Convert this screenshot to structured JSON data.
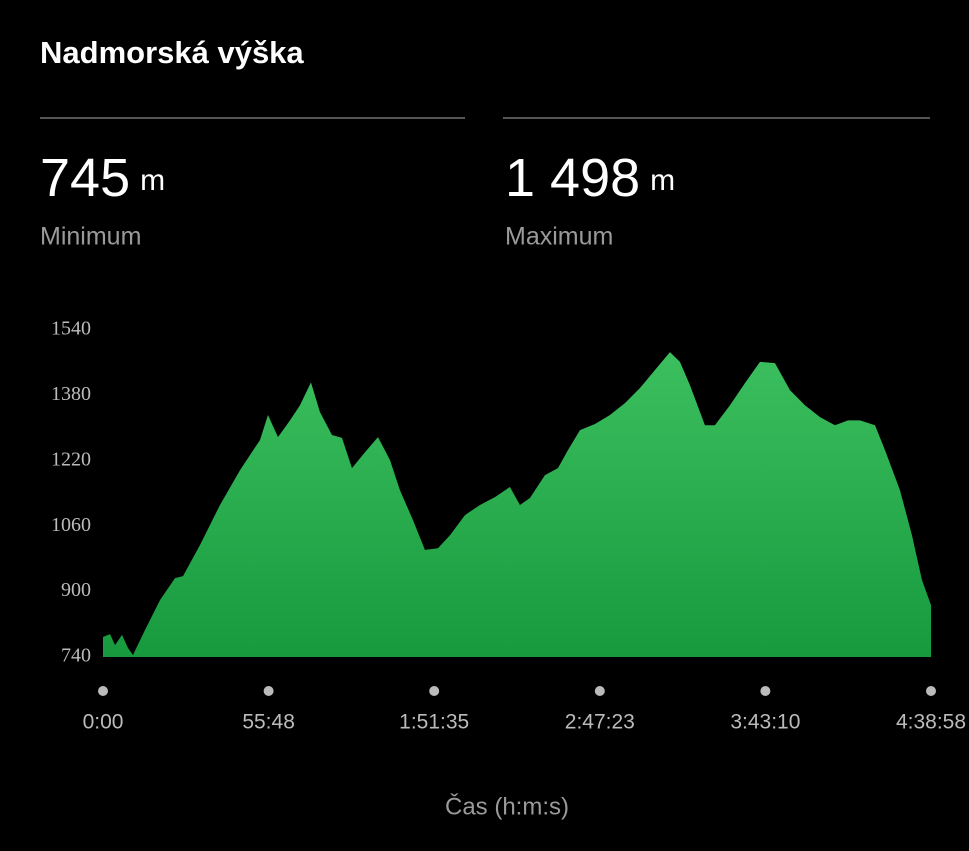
{
  "header": {
    "title": "Nadmorská výška"
  },
  "stats": [
    {
      "value": "745",
      "unit": "m",
      "label": "Minimum"
    },
    {
      "value": "1 498",
      "unit": "m",
      "label": "Maximum"
    }
  ],
  "chart_data": {
    "type": "area",
    "x_label": "Čas (h:m:s)",
    "color": "#3cbf5e",
    "x": [
      0,
      142,
      243,
      384,
      505,
      606,
      849,
      1152,
      1456,
      1617,
      1961,
      2365,
      2769,
      3174,
      3335,
      3537,
      3780,
      3982,
      4204,
      4386,
      4629,
      4831,
      5033,
      5296,
      5559,
      5801,
      6003,
      6266,
      6508,
      6771,
      7014,
      7317,
      7620,
      7923,
      8226,
      8428,
      8631,
      8934,
      9197,
      9399,
      9642,
      9945,
      10248,
      10551,
      10855,
      11158,
      11461,
      11663,
      11865,
      12168,
      12370,
      12674,
      12977,
      13280,
      13584,
      13887,
      14190,
      14494,
      14797,
      15060,
      15303,
      15606,
      15808,
      16111,
      16353,
      16556,
      16738
    ],
    "values": [
      789,
      796,
      769,
      794,
      762,
      745,
      806,
      879,
      933,
      938,
      1014,
      1112,
      1197,
      1271,
      1332,
      1278,
      1319,
      1356,
      1412,
      1339,
      1283,
      1276,
      1202,
      1241,
      1278,
      1222,
      1148,
      1075,
      1002,
      1006,
      1038,
      1087,
      1112,
      1131,
      1156,
      1112,
      1129,
      1185,
      1202,
      1246,
      1295,
      1310,
      1332,
      1361,
      1398,
      1442,
      1486,
      1462,
      1405,
      1307,
      1307,
      1356,
      1410,
      1462,
      1459,
      1393,
      1356,
      1327,
      1307,
      1319,
      1319,
      1307,
      1246,
      1148,
      1038,
      928,
      867
    ],
    "xlim": [
      0,
      16738
    ],
    "xticks": [
      {
        "value": 0,
        "label": "0:00"
      },
      {
        "value": 3348,
        "label": "55:48"
      },
      {
        "value": 6695,
        "label": "1:51:35"
      },
      {
        "value": 10043,
        "label": "2:47:23"
      },
      {
        "value": 13390,
        "label": "3:43:10"
      },
      {
        "value": 16738,
        "label": "4:38:58"
      }
    ],
    "ylim": [
      740,
      1540
    ],
    "yticks": [
      740,
      900,
      1060,
      1220,
      1380,
      1540
    ]
  }
}
